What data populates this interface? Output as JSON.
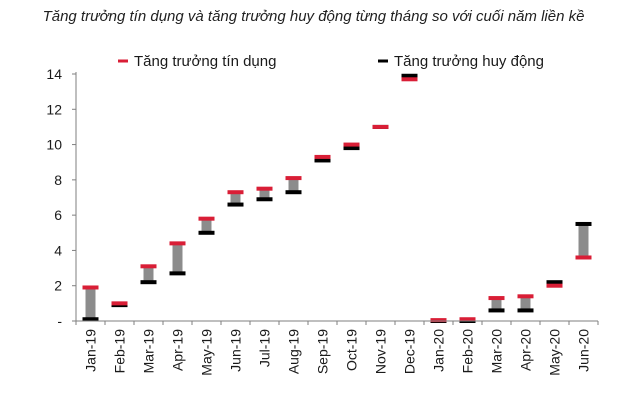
{
  "chart_data": {
    "type": "bar",
    "title": "Tăng trưởng tín dụng và tăng trưởng huy động từng tháng so với cuối năm liền kề",
    "xlabel": "",
    "ylabel": "",
    "ylim": [
      0,
      14
    ],
    "yticks": [
      0,
      2,
      4,
      6,
      8,
      10,
      12,
      14
    ],
    "ytick_labels": [
      "-",
      "2",
      "4",
      "6",
      "8",
      "10",
      "12",
      "14"
    ],
    "legend_position": "top",
    "categories": [
      "Jan-19",
      "Feb-19",
      "Mar-19",
      "Apr-19",
      "May-19",
      "Jun-19",
      "Jul-19",
      "Aug-19",
      "Sep-19",
      "Oct-19",
      "Nov-19",
      "Dec-19",
      "Jan-20",
      "Feb-20",
      "Mar-20",
      "Apr-20",
      "May-20",
      "Jun-20"
    ],
    "series": [
      {
        "name": "Tăng trưởng tín dụng",
        "color": "#d91e36",
        "values": [
          1.9,
          1.0,
          3.1,
          4.4,
          5.8,
          7.3,
          7.5,
          8.1,
          9.3,
          10.0,
          11.0,
          13.7,
          0.05,
          0.1,
          1.3,
          1.4,
          2.0,
          3.6
        ]
      },
      {
        "name": "Tăng trưởng huy động",
        "color": "#000000",
        "values": [
          0.1,
          0.9,
          2.2,
          2.7,
          5.0,
          6.6,
          6.9,
          7.3,
          9.1,
          9.8,
          11.0,
          13.9,
          0.0,
          0.0,
          0.6,
          0.6,
          2.2,
          5.5
        ]
      }
    ],
    "range_bar_color": "#8c8c8c"
  }
}
